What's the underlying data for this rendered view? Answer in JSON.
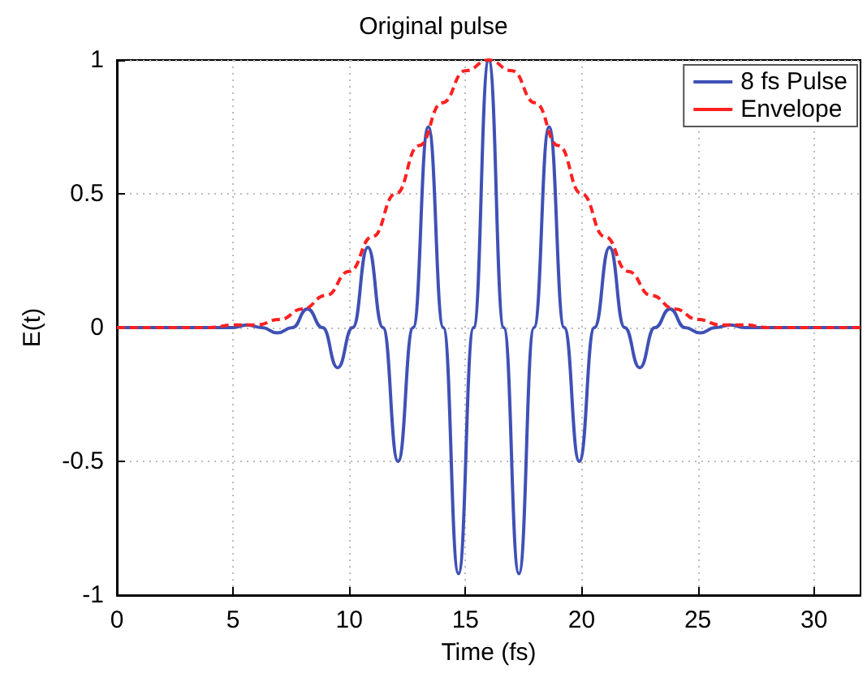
{
  "chart_data": {
    "type": "line",
    "title": "Original pulse",
    "xlabel": "Time (fs)",
    "ylabel": "E(t)",
    "xlim": [
      0,
      32
    ],
    "ylim": [
      -1,
      1
    ],
    "xticks": [
      0,
      5,
      10,
      15,
      20,
      25,
      30
    ],
    "yticks": [
      -1,
      -0.5,
      0,
      0.5,
      1
    ],
    "grid": true,
    "legend": "top right",
    "marker": "none",
    "series": [
      {
        "name": "8 fs Pulse",
        "color": "#3f51b5",
        "line_style": "solid",
        "x": [
          0,
          4,
          5,
          5.6,
          6.25,
          6.9,
          7.55,
          8.2,
          8.85,
          9.5,
          10.15,
          10.8,
          11.45,
          12.1,
          12.75,
          13.4,
          14.05,
          14.7,
          15.35,
          16,
          16.65,
          17.3,
          17.95,
          18.6,
          19.25,
          19.9,
          20.55,
          21.2,
          21.85,
          22.5,
          23.15,
          23.8,
          24.45,
          25.1,
          25.75,
          26.4,
          27,
          32
        ],
        "values": [
          0,
          0,
          0,
          0.01,
          0,
          -0.02,
          0,
          0.07,
          0,
          -0.15,
          0,
          0.3,
          0,
          -0.5,
          0,
          0.75,
          0,
          -0.92,
          0,
          1,
          0,
          -0.92,
          0,
          0.75,
          0,
          -0.5,
          0,
          0.3,
          0,
          -0.15,
          0,
          0.07,
          0,
          -0.02,
          0,
          0.01,
          0,
          0
        ]
      },
      {
        "name": "Envelope",
        "color": "#ff2020",
        "line_style": "dashed",
        "x": [
          0,
          4,
          5,
          6,
          7,
          8,
          9,
          10,
          11,
          12,
          13,
          14,
          15,
          16,
          17,
          18,
          19,
          20,
          21,
          22,
          23,
          24,
          25,
          26,
          27,
          28,
          32
        ],
        "values": [
          0,
          0,
          0.01,
          0.01,
          0.03,
          0.07,
          0.12,
          0.21,
          0.34,
          0.5,
          0.68,
          0.84,
          0.96,
          1,
          0.96,
          0.84,
          0.68,
          0.5,
          0.34,
          0.21,
          0.12,
          0.07,
          0.03,
          0.01,
          0.01,
          0,
          0
        ]
      }
    ]
  }
}
